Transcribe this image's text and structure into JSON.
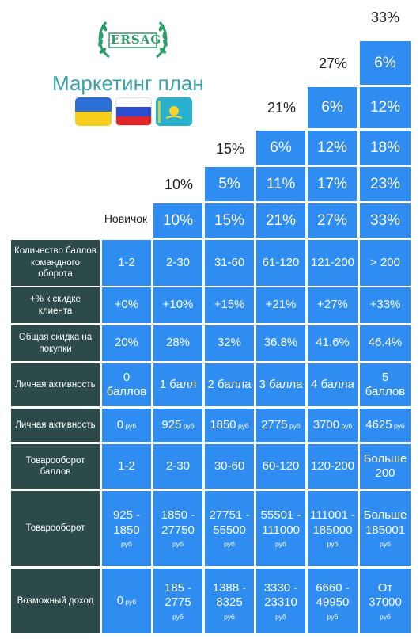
{
  "logo": {
    "text": "ERSAG"
  },
  "title": "Маркетинг план",
  "flags": [
    "ukraine-flag",
    "russia-flag",
    "kazakhstan-flag"
  ],
  "novice_label": "Новичок",
  "stairs": {
    "headers": [
      "10%",
      "15%",
      "21%",
      "27%",
      "33%"
    ],
    "col2": [
      "10%"
    ],
    "col3": [
      "5%",
      "15%"
    ],
    "col4": [
      "6%",
      "11%",
      "21%"
    ],
    "col5": [
      "6%",
      "12%",
      "17%",
      "27%"
    ],
    "col6": [
      "6%",
      "12%",
      "18%",
      "23%",
      "33%"
    ]
  },
  "table": {
    "rows": [
      {
        "label": "Количество баллов командного оборота",
        "cells": [
          {
            "v": "1-2"
          },
          {
            "v": "2-30"
          },
          {
            "v": "31-60"
          },
          {
            "v": "61-120"
          },
          {
            "v": "121-200"
          },
          {
            "v": "> 200"
          }
        ]
      },
      {
        "label": "+% к скидке клиента",
        "cells": [
          {
            "v": "+0%"
          },
          {
            "v": "+10%"
          },
          {
            "v": "+15%"
          },
          {
            "v": "+21%"
          },
          {
            "v": "+27%"
          },
          {
            "v": "+33%"
          }
        ]
      },
      {
        "label": "Общая скидка на покупки",
        "cells": [
          {
            "v": "20%"
          },
          {
            "v": "28%"
          },
          {
            "v": "32%"
          },
          {
            "v": "36.8%"
          },
          {
            "v": "41.6%"
          },
          {
            "v": "46.4%"
          }
        ]
      },
      {
        "label": "Личная активность",
        "cells": [
          {
            "v": "0 баллов"
          },
          {
            "v": "1 балл"
          },
          {
            "v": "2 балла"
          },
          {
            "v": "3 балла"
          },
          {
            "v": "4 балла"
          },
          {
            "v": "5 баллов"
          }
        ]
      },
      {
        "label": "Личная активность",
        "cells": [
          {
            "v": "0",
            "u": "руб"
          },
          {
            "v": "925",
            "u": "руб"
          },
          {
            "v": "1850",
            "u": "руб"
          },
          {
            "v": "2775",
            "u": "руб"
          },
          {
            "v": "3700",
            "u": "руб"
          },
          {
            "v": "4625",
            "u": "руб"
          }
        ]
      },
      {
        "label": "Товарооборот баллов",
        "cells": [
          {
            "v": "1-2"
          },
          {
            "v": "2-30"
          },
          {
            "v": "30-60"
          },
          {
            "v": "60-120"
          },
          {
            "v": "120-200"
          },
          {
            "v": "Больше 200"
          }
        ]
      },
      {
        "label": "Товарооборот",
        "cells": [
          {
            "v": "925 - 1850",
            "u": "руб"
          },
          {
            "v": "1850 - 27750",
            "u": "руб"
          },
          {
            "v": "27751 - 55500",
            "u": "руб"
          },
          {
            "v": "55501 - 111000",
            "u": "руб"
          },
          {
            "v": "111001 - 185000",
            "u": "руб"
          },
          {
            "v": "Больше 185001",
            "u": "руб"
          }
        ]
      },
      {
        "label": "Возможный доход",
        "cells": [
          {
            "v": "0",
            "u": "руб"
          },
          {
            "v": "185 - 2775",
            "u": "руб"
          },
          {
            "v": "1388 - 8325",
            "u": "руб"
          },
          {
            "v": "3330 - 23310",
            "u": "руб"
          },
          {
            "v": "6660 - 49950",
            "u": "руб"
          },
          {
            "v": "От 37000",
            "u": "руб"
          }
        ]
      }
    ]
  },
  "colors": {
    "cell_blue": "#2f8cf0",
    "label_dark": "#2c4a4a",
    "title_teal": "#3aa1a8",
    "logo_green": "#2e9e6a"
  }
}
